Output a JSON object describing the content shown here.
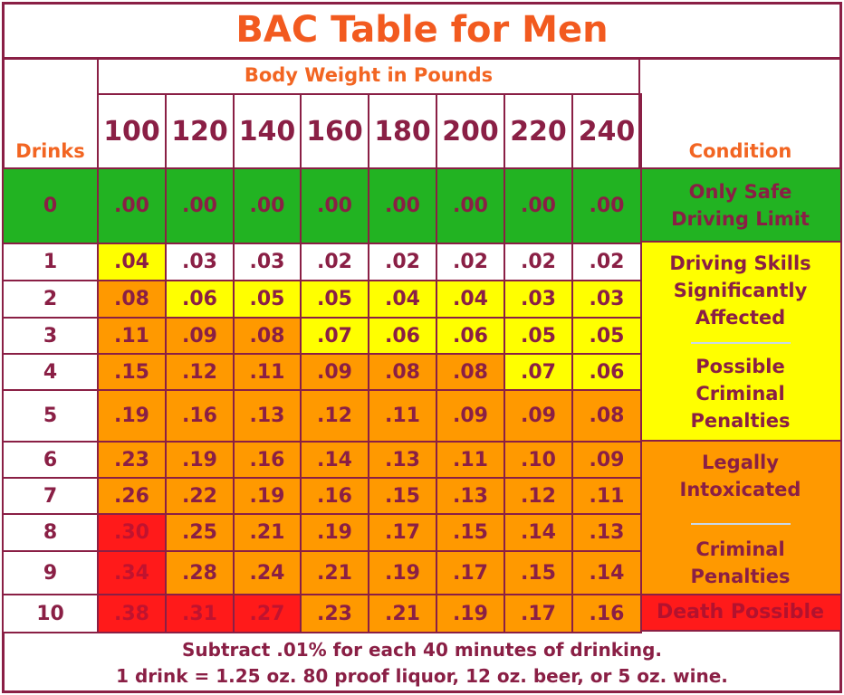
{
  "title": "BAC Table for Men",
  "header": {
    "drinks_label": "Drinks",
    "weight_label": "Body Weight in Pounds",
    "condition_label": "Condition",
    "weights": [
      "100",
      "120",
      "140",
      "160",
      "180",
      "200",
      "220",
      "240"
    ]
  },
  "rows": [
    {
      "drinks": "0",
      "values": [
        ".00",
        ".00",
        ".00",
        ".00",
        ".00",
        ".00",
        ".00",
        ".00"
      ]
    },
    {
      "drinks": "1",
      "values": [
        ".04",
        ".03",
        ".03",
        ".02",
        ".02",
        ".02",
        ".02",
        ".02"
      ]
    },
    {
      "drinks": "2",
      "values": [
        ".08",
        ".06",
        ".05",
        ".05",
        ".04",
        ".04",
        ".03",
        ".03"
      ]
    },
    {
      "drinks": "3",
      "values": [
        ".11",
        ".09",
        ".08",
        ".07",
        ".06",
        ".06",
        ".05",
        ".05"
      ]
    },
    {
      "drinks": "4",
      "values": [
        ".15",
        ".12",
        ".11",
        ".09",
        ".08",
        ".08",
        ".07",
        ".06"
      ]
    },
    {
      "drinks": "5",
      "values": [
        ".19",
        ".16",
        ".13",
        ".12",
        ".11",
        ".09",
        ".09",
        ".08"
      ]
    },
    {
      "drinks": "6",
      "values": [
        ".23",
        ".19",
        ".16",
        ".14",
        ".13",
        ".11",
        ".10",
        ".09"
      ]
    },
    {
      "drinks": "7",
      "values": [
        ".26",
        ".22",
        ".19",
        ".16",
        ".15",
        ".13",
        ".12",
        ".11"
      ]
    },
    {
      "drinks": "8",
      "values": [
        ".30",
        ".25",
        ".21",
        ".19",
        ".17",
        ".15",
        ".14",
        ".13"
      ]
    },
    {
      "drinks": "9",
      "values": [
        ".34",
        ".28",
        ".24",
        ".21",
        ".19",
        ".17",
        ".15",
        ".14"
      ]
    },
    {
      "drinks": "10",
      "values": [
        ".38",
        ".31",
        ".27",
        ".23",
        ".21",
        ".19",
        ".17",
        ".16"
      ]
    }
  ],
  "conditions": {
    "safe": [
      "Only Safe",
      "Driving Limit"
    ],
    "skills": [
      "Driving Skills",
      "Significantly",
      "Affected"
    ],
    "possible": [
      "Possible",
      "Criminal",
      "Penalties"
    ],
    "legally": [
      "Legally",
      "Intoxicated"
    ],
    "criminal": [
      "Criminal",
      "Penalties"
    ],
    "death": "Death Possible"
  },
  "footer": {
    "line1": "Subtract .01% for each 40 minutes of drinking.",
    "line2": "1 drink = 1.25 oz. 80 proof liquor, 12 oz. beer, or 5 oz. wine."
  },
  "colors": {
    "white": "#ffffff",
    "yellow": "#ffff00",
    "orange": "#ff9900",
    "red": "#ff1a1a",
    "green": "#22b322",
    "border": "#8a1f45",
    "header_text": "#f26522"
  },
  "cell_colors": [
    [
      "green",
      "green",
      "green",
      "green",
      "green",
      "green",
      "green",
      "green"
    ],
    [
      "yellow",
      "white",
      "white",
      "white",
      "white",
      "white",
      "white",
      "white"
    ],
    [
      "orange",
      "yellow",
      "yellow",
      "yellow",
      "yellow",
      "yellow",
      "yellow",
      "yellow"
    ],
    [
      "orange",
      "orange",
      "orange",
      "yellow",
      "yellow",
      "yellow",
      "yellow",
      "yellow"
    ],
    [
      "orange",
      "orange",
      "orange",
      "orange",
      "orange",
      "orange",
      "yellow",
      "yellow"
    ],
    [
      "orange",
      "orange",
      "orange",
      "orange",
      "orange",
      "orange",
      "orange",
      "orange"
    ],
    [
      "orange",
      "orange",
      "orange",
      "orange",
      "orange",
      "orange",
      "orange",
      "orange"
    ],
    [
      "orange",
      "orange",
      "orange",
      "orange",
      "orange",
      "orange",
      "orange",
      "orange"
    ],
    [
      "red",
      "orange",
      "orange",
      "orange",
      "orange",
      "orange",
      "orange",
      "orange"
    ],
    [
      "red",
      "orange",
      "orange",
      "orange",
      "orange",
      "orange",
      "orange",
      "orange"
    ],
    [
      "red",
      "red",
      "red",
      "orange",
      "orange",
      "orange",
      "orange",
      "orange"
    ]
  ]
}
